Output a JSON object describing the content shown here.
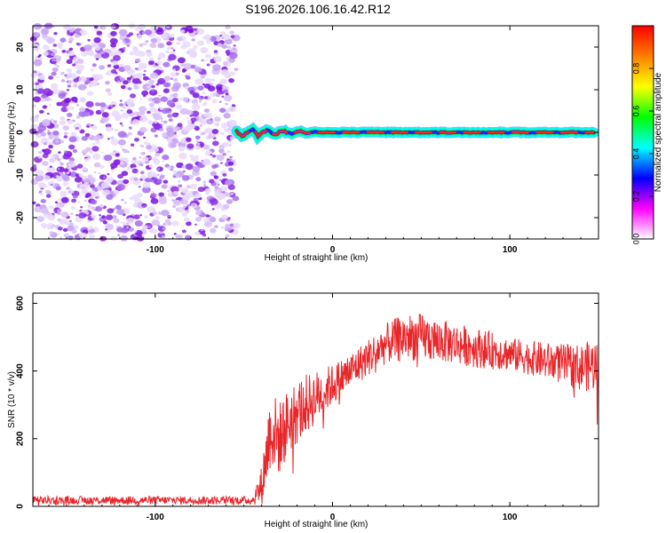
{
  "title": "S196.2026.106.16.42.R12",
  "colors": {
    "signal_line": "#e8262a",
    "scatter": "#8a2be2",
    "frame": "#000000"
  },
  "chart_data": [
    {
      "type": "heatmap",
      "xlabel": "Height of straight line (km)",
      "ylabel": "Frequency (Hz)",
      "xlim": [
        -169,
        150
      ],
      "ylim": [
        -25,
        25
      ],
      "xticks": [
        -100,
        0,
        100
      ],
      "xtick_labels": [
        "-100",
        "0",
        "100"
      ],
      "yticks": [
        -20,
        -10,
        0,
        10,
        20
      ],
      "ytick_labels": [
        "-20",
        "-10",
        "0",
        "10",
        "20"
      ],
      "noise_region_x": [
        -169,
        -54
      ],
      "signal_ridge": {
        "frequency": 0,
        "start_x": -54,
        "end_x": 148
      },
      "colorbar": {
        "label": "Normalized spectral amplitude",
        "range": [
          0,
          1
        ],
        "ticks": [
          0.0,
          0.2,
          0.4,
          0.6,
          0.8
        ],
        "tick_labels": [
          "0.0",
          "0.2",
          "0.4",
          "0.6",
          "0.8"
        ],
        "colormap": [
          "#ffffff",
          "#ff00ff",
          "#0000ff",
          "#00ffff",
          "#00ff00",
          "#ffff00",
          "#ff7f00",
          "#ff0000"
        ]
      }
    },
    {
      "type": "line",
      "xlabel": "Height of straight line (km)",
      "ylabel": "SNR (10 * v/v)",
      "xlim": [
        -169,
        150
      ],
      "ylim": [
        0,
        630
      ],
      "xticks": [
        -100,
        0,
        100
      ],
      "xtick_labels": [
        "-100",
        "0",
        "100"
      ],
      "yticks": [
        0,
        200,
        400,
        600
      ],
      "ytick_labels": [
        "0",
        "200",
        "400",
        "600"
      ],
      "series": [
        {
          "name": "SNR",
          "envelope": {
            "x": [
              -169,
              -45,
              -40,
              -35,
              -30,
              -25,
              -20,
              -15,
              -10,
              -5,
              0,
              10,
              20,
              30,
              40,
              50,
              60,
              70,
              80,
              90,
              100,
              110,
              120,
              130,
              140,
              150
            ],
            "mean": [
              18,
              18,
              60,
              230,
              200,
              250,
              280,
              300,
              320,
              340,
              360,
              400,
              440,
              480,
              500,
              500,
              490,
              480,
              470,
              460,
              450,
              440,
              430,
              420,
              410,
              420
            ],
            "spread": [
              12,
              12,
              60,
              120,
              110,
              100,
              100,
              90,
              80,
              70,
              60,
              55,
              55,
              60,
              70,
              70,
              65,
              60,
              60,
              55,
              50,
              50,
              55,
              60,
              70,
              80
            ]
          }
        }
      ]
    }
  ]
}
